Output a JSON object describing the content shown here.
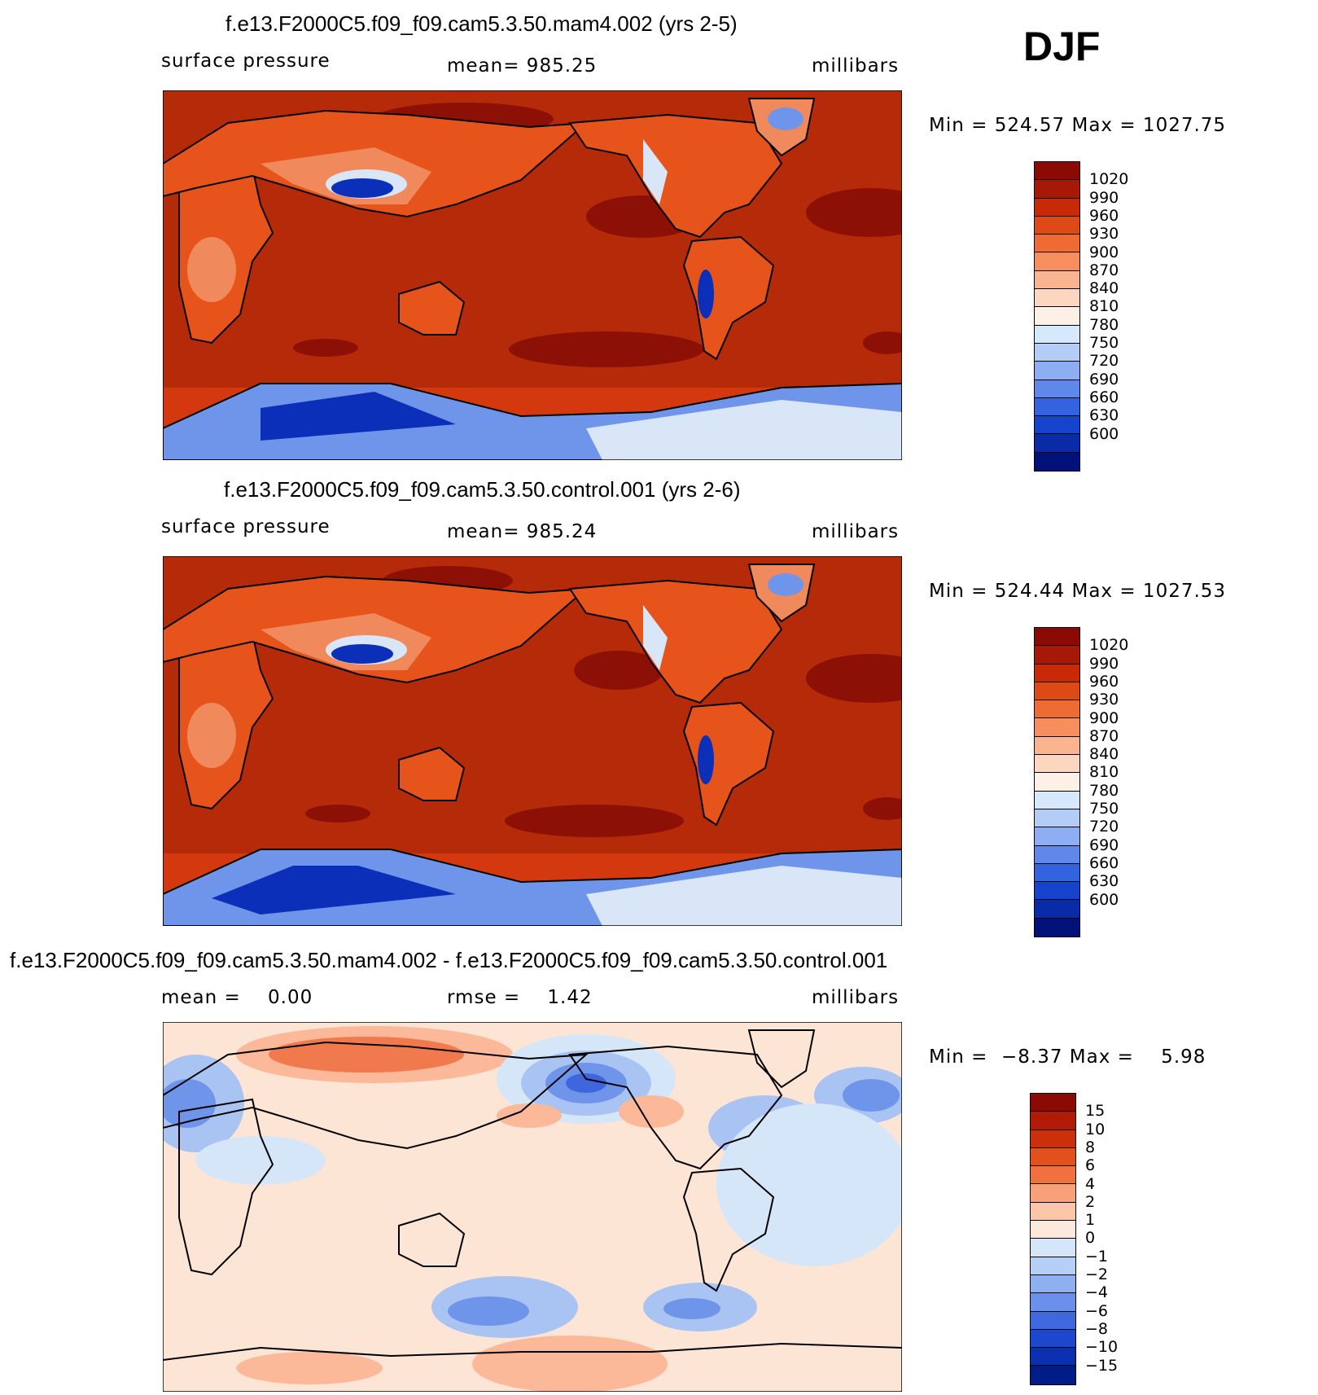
{
  "season": "DJF",
  "colors": {
    "ocean_abs": "#b52a08",
    "ocean_band_abs": "#d4380f",
    "high_abs": "#8c1005",
    "land_abs": "#e6541c",
    "land_light": "#f08a5d",
    "low_light": "#d8e6f8",
    "low_mid": "#6f95ea",
    "low_deep": "#0b2fb8",
    "diff_bg": "#fde5d6",
    "diff_neg1": "#d6e6f9",
    "diff_neg2": "#a9c4f3",
    "diff_neg4": "#6f95ea",
    "diff_neg6": "#3e66dd",
    "diff_pos2": "#fbb99a",
    "diff_pos4": "#f07a4e"
  },
  "panels": [
    {
      "title": "f.e13.F2000C5.f09_f09.cam5.3.50.mam4.002 (yrs 2-5)",
      "left_label": "surface pressure",
      "center_label": "mean= 985.25",
      "right_label": "millibars",
      "minmax": "Min = 524.57 Max = 1027.75",
      "type": "absolute"
    },
    {
      "title": "f.e13.F2000C5.f09_f09.cam5.3.50.control.001 (yrs 2-6)",
      "left_label": "surface pressure",
      "center_label": "mean= 985.24",
      "right_label": "millibars",
      "minmax": "Min = 524.44 Max = 1027.53",
      "type": "absolute"
    },
    {
      "title": "f.e13.F2000C5.f09_f09.cam5.3.50.mam4.002 - f.e13.F2000C5.f09_f09.cam5.3.50.control.001",
      "left_label": "mean =    0.00",
      "center_label": "rmse =    1.42",
      "right_label": "millibars",
      "minmax": "Min =  −8.37 Max =    5.98",
      "type": "difference"
    }
  ],
  "colorbar_abs": {
    "labels": [
      "1020",
      "990",
      "960",
      "930",
      "900",
      "870",
      "840",
      "810",
      "780",
      "750",
      "720",
      "690",
      "660",
      "630",
      "600"
    ],
    "colors": [
      "#8b0a04",
      "#a81806",
      "#c82a08",
      "#de4a16",
      "#ee6b33",
      "#f68e5e",
      "#fab48f",
      "#fdd6bf",
      "#fdf0e6",
      "#d6e8fb",
      "#b3cdf7",
      "#8daef2",
      "#5f88ea",
      "#3363de",
      "#1643cc",
      "#0a2ba8",
      "#00127a"
    ]
  },
  "colorbar_diff": {
    "labels": [
      "15",
      "10",
      "8",
      "6",
      "4",
      "2",
      "1",
      "0",
      "−1",
      "−2",
      "−4",
      "−6",
      "−8",
      "−10",
      "−15"
    ],
    "colors": [
      "#8b0a04",
      "#b01a06",
      "#cc300a",
      "#e2501c",
      "#f07040",
      "#f8a07a",
      "#fcc6ab",
      "#fde9dc",
      "#d6e6f9",
      "#b6cff6",
      "#8fb0f0",
      "#6a90e9",
      "#3f68de",
      "#1d47cf",
      "#0a2fb0",
      "#001c88"
    ]
  }
}
